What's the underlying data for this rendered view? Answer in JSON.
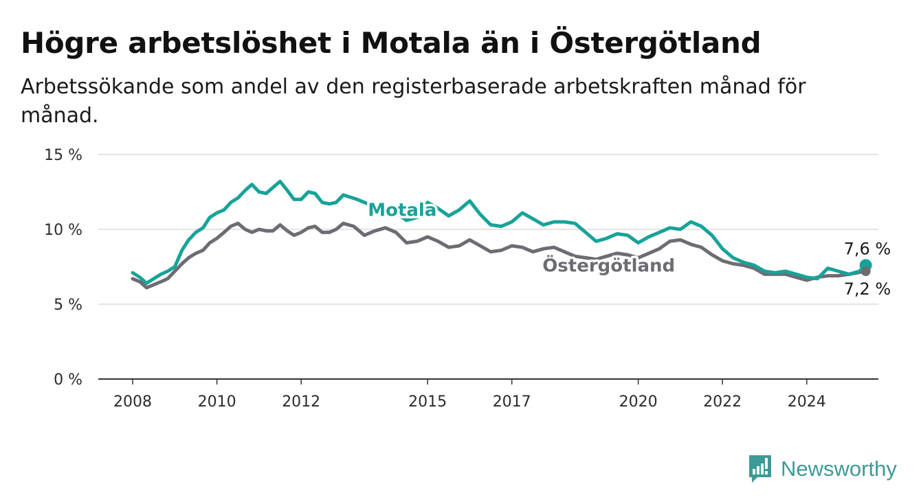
{
  "title": "Högre arbetslöshet i Motala än i Östergötland",
  "subtitle": "Arbetssökande som andel av den registerbaserade arbetskraften månad för månad.",
  "brand": {
    "name": "Newsworthy",
    "icon": "newsworthy-chart-icon",
    "color": "#3d9a97"
  },
  "colors": {
    "motala": "#17a398",
    "ostergotland": "#6e6c73",
    "grid": "#dcdcdc",
    "axis": "#333333"
  },
  "chart_data": {
    "type": "line",
    "title": "Högre arbetslöshet i Motala än i Östergötland",
    "subtitle": "Arbetssökande som andel av den registerbaserade arbetskraften månad för månad.",
    "ylim": [
      0,
      15
    ],
    "yticks": [
      0,
      5,
      10,
      15
    ],
    "ytick_labels": [
      "0 %",
      "5 %",
      "10 %",
      "15 %"
    ],
    "xlim": [
      2008,
      2025.5
    ],
    "xticks": [
      2008,
      2010,
      2012,
      2015,
      2017,
      2020,
      2022,
      2024
    ],
    "xtick_labels": [
      "2008",
      "2010",
      "2012",
      "2015",
      "2017",
      "2020",
      "2022",
      "2024"
    ],
    "grid": true,
    "series": [
      {
        "name": "Motala",
        "color": "#17a398",
        "end_label": "7,6 %",
        "points": [
          [
            2008.0,
            7.1
          ],
          [
            2008.17,
            6.8
          ],
          [
            2008.33,
            6.4
          ],
          [
            2008.5,
            6.7
          ],
          [
            2008.67,
            7.0
          ],
          [
            2008.83,
            7.2
          ],
          [
            2009.0,
            7.5
          ],
          [
            2009.17,
            8.6
          ],
          [
            2009.33,
            9.3
          ],
          [
            2009.5,
            9.8
          ],
          [
            2009.67,
            10.1
          ],
          [
            2009.83,
            10.8
          ],
          [
            2010.0,
            11.1
          ],
          [
            2010.17,
            11.3
          ],
          [
            2010.33,
            11.8
          ],
          [
            2010.5,
            12.1
          ],
          [
            2010.67,
            12.6
          ],
          [
            2010.83,
            13.0
          ],
          [
            2011.0,
            12.5
          ],
          [
            2011.17,
            12.4
          ],
          [
            2011.33,
            12.8
          ],
          [
            2011.5,
            13.2
          ],
          [
            2011.67,
            12.6
          ],
          [
            2011.83,
            12.0
          ],
          [
            2012.0,
            12.0
          ],
          [
            2012.17,
            12.5
          ],
          [
            2012.33,
            12.4
          ],
          [
            2012.5,
            11.8
          ],
          [
            2012.67,
            11.7
          ],
          [
            2012.83,
            11.8
          ],
          [
            2013.0,
            12.3
          ],
          [
            2013.33,
            12.0
          ],
          [
            2013.67,
            11.6
          ],
          [
            2014.0,
            11.4
          ],
          [
            2014.25,
            11.1
          ],
          [
            2014.5,
            10.6
          ],
          [
            2014.75,
            10.8
          ],
          [
            2015.0,
            11.8
          ],
          [
            2015.25,
            11.4
          ],
          [
            2015.5,
            10.9
          ],
          [
            2015.75,
            11.3
          ],
          [
            2016.0,
            11.9
          ],
          [
            2016.25,
            11.0
          ],
          [
            2016.5,
            10.3
          ],
          [
            2016.75,
            10.2
          ],
          [
            2017.0,
            10.5
          ],
          [
            2017.25,
            11.1
          ],
          [
            2017.5,
            10.7
          ],
          [
            2017.75,
            10.3
          ],
          [
            2018.0,
            10.5
          ],
          [
            2018.25,
            10.5
          ],
          [
            2018.5,
            10.4
          ],
          [
            2018.75,
            9.8
          ],
          [
            2019.0,
            9.2
          ],
          [
            2019.25,
            9.4
          ],
          [
            2019.5,
            9.7
          ],
          [
            2019.75,
            9.6
          ],
          [
            2020.0,
            9.1
          ],
          [
            2020.25,
            9.5
          ],
          [
            2020.5,
            9.8
          ],
          [
            2020.75,
            10.1
          ],
          [
            2021.0,
            10.0
          ],
          [
            2021.25,
            10.5
          ],
          [
            2021.5,
            10.2
          ],
          [
            2021.75,
            9.6
          ],
          [
            2022.0,
            8.7
          ],
          [
            2022.25,
            8.1
          ],
          [
            2022.5,
            7.8
          ],
          [
            2022.75,
            7.6
          ],
          [
            2023.0,
            7.2
          ],
          [
            2023.25,
            7.1
          ],
          [
            2023.5,
            7.2
          ],
          [
            2023.75,
            7.0
          ],
          [
            2024.0,
            6.8
          ],
          [
            2024.25,
            6.7
          ],
          [
            2024.5,
            7.4
          ],
          [
            2024.75,
            7.2
          ],
          [
            2025.0,
            7.0
          ],
          [
            2025.25,
            7.2
          ],
          [
            2025.4,
            7.6
          ]
        ]
      },
      {
        "name": "Östergötland",
        "color": "#6e6c73",
        "end_label": "7,2 %",
        "points": [
          [
            2008.0,
            6.7
          ],
          [
            2008.17,
            6.5
          ],
          [
            2008.33,
            6.1
          ],
          [
            2008.5,
            6.3
          ],
          [
            2008.67,
            6.5
          ],
          [
            2008.83,
            6.7
          ],
          [
            2009.0,
            7.2
          ],
          [
            2009.17,
            7.7
          ],
          [
            2009.33,
            8.1
          ],
          [
            2009.5,
            8.4
          ],
          [
            2009.67,
            8.6
          ],
          [
            2009.83,
            9.1
          ],
          [
            2010.0,
            9.4
          ],
          [
            2010.17,
            9.8
          ],
          [
            2010.33,
            10.2
          ],
          [
            2010.5,
            10.4
          ],
          [
            2010.67,
            10.0
          ],
          [
            2010.83,
            9.8
          ],
          [
            2011.0,
            10.0
          ],
          [
            2011.17,
            9.9
          ],
          [
            2011.33,
            9.9
          ],
          [
            2011.5,
            10.3
          ],
          [
            2011.67,
            9.9
          ],
          [
            2011.83,
            9.6
          ],
          [
            2012.0,
            9.8
          ],
          [
            2012.17,
            10.1
          ],
          [
            2012.33,
            10.2
          ],
          [
            2012.5,
            9.8
          ],
          [
            2012.67,
            9.8
          ],
          [
            2012.83,
            10.0
          ],
          [
            2013.0,
            10.4
          ],
          [
            2013.25,
            10.2
          ],
          [
            2013.5,
            9.6
          ],
          [
            2013.75,
            9.9
          ],
          [
            2014.0,
            10.1
          ],
          [
            2014.25,
            9.8
          ],
          [
            2014.5,
            9.1
          ],
          [
            2014.75,
            9.2
          ],
          [
            2015.0,
            9.5
          ],
          [
            2015.25,
            9.2
          ],
          [
            2015.5,
            8.8
          ],
          [
            2015.75,
            8.9
          ],
          [
            2016.0,
            9.3
          ],
          [
            2016.25,
            8.9
          ],
          [
            2016.5,
            8.5
          ],
          [
            2016.75,
            8.6
          ],
          [
            2017.0,
            8.9
          ],
          [
            2017.25,
            8.8
          ],
          [
            2017.5,
            8.5
          ],
          [
            2017.75,
            8.7
          ],
          [
            2018.0,
            8.8
          ],
          [
            2018.25,
            8.5
          ],
          [
            2018.5,
            8.2
          ],
          [
            2018.75,
            8.1
          ],
          [
            2019.0,
            8.0
          ],
          [
            2019.25,
            8.2
          ],
          [
            2019.5,
            8.4
          ],
          [
            2019.75,
            8.3
          ],
          [
            2020.0,
            8.1
          ],
          [
            2020.25,
            8.4
          ],
          [
            2020.5,
            8.7
          ],
          [
            2020.75,
            9.2
          ],
          [
            2021.0,
            9.3
          ],
          [
            2021.25,
            9.0
          ],
          [
            2021.5,
            8.8
          ],
          [
            2021.75,
            8.3
          ],
          [
            2022.0,
            7.9
          ],
          [
            2022.25,
            7.7
          ],
          [
            2022.5,
            7.6
          ],
          [
            2022.75,
            7.4
          ],
          [
            2023.0,
            7.0
          ],
          [
            2023.25,
            7.0
          ],
          [
            2023.5,
            7.0
          ],
          [
            2023.75,
            6.8
          ],
          [
            2024.0,
            6.6
          ],
          [
            2024.25,
            6.8
          ],
          [
            2024.5,
            6.9
          ],
          [
            2024.75,
            6.9
          ],
          [
            2025.0,
            7.0
          ],
          [
            2025.4,
            7.2
          ]
        ]
      }
    ]
  }
}
